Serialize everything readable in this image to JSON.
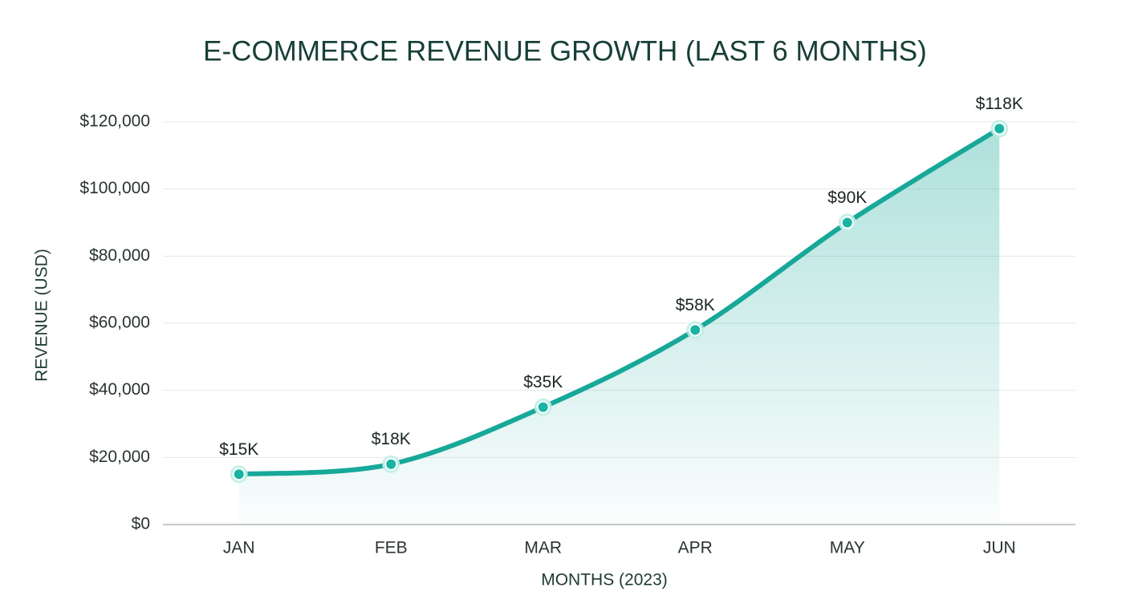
{
  "chart_data": {
    "type": "line",
    "title": "E-COMMERCE REVENUE GROWTH (LAST 6 MONTHS)",
    "x_label": "MONTHS (2023)",
    "y_label": "REVENUE (USD)",
    "categories": [
      "JAN",
      "FEB",
      "MAR",
      "APR",
      "MAY",
      "JUN"
    ],
    "values": [
      15000,
      18000,
      35000,
      58000,
      90000,
      118000
    ],
    "value_labels": [
      "$15K",
      "$18K",
      "$35K",
      "$58K",
      "$90K",
      "$118K"
    ],
    "color": "#17a899",
    "ylim": [
      0,
      120000
    ],
    "yticks": [
      {
        "value": 0,
        "label": "$0"
      },
      {
        "value": 20000,
        "label": "$20,000"
      },
      {
        "value": 40000,
        "label": "$40,000"
      },
      {
        "value": 60000,
        "label": "$60,000"
      },
      {
        "value": 80000,
        "label": "$80,000"
      },
      {
        "value": 100000,
        "label": "$100,000"
      },
      {
        "value": 120000,
        "label": "$120,000"
      }
    ],
    "grid": true
  }
}
